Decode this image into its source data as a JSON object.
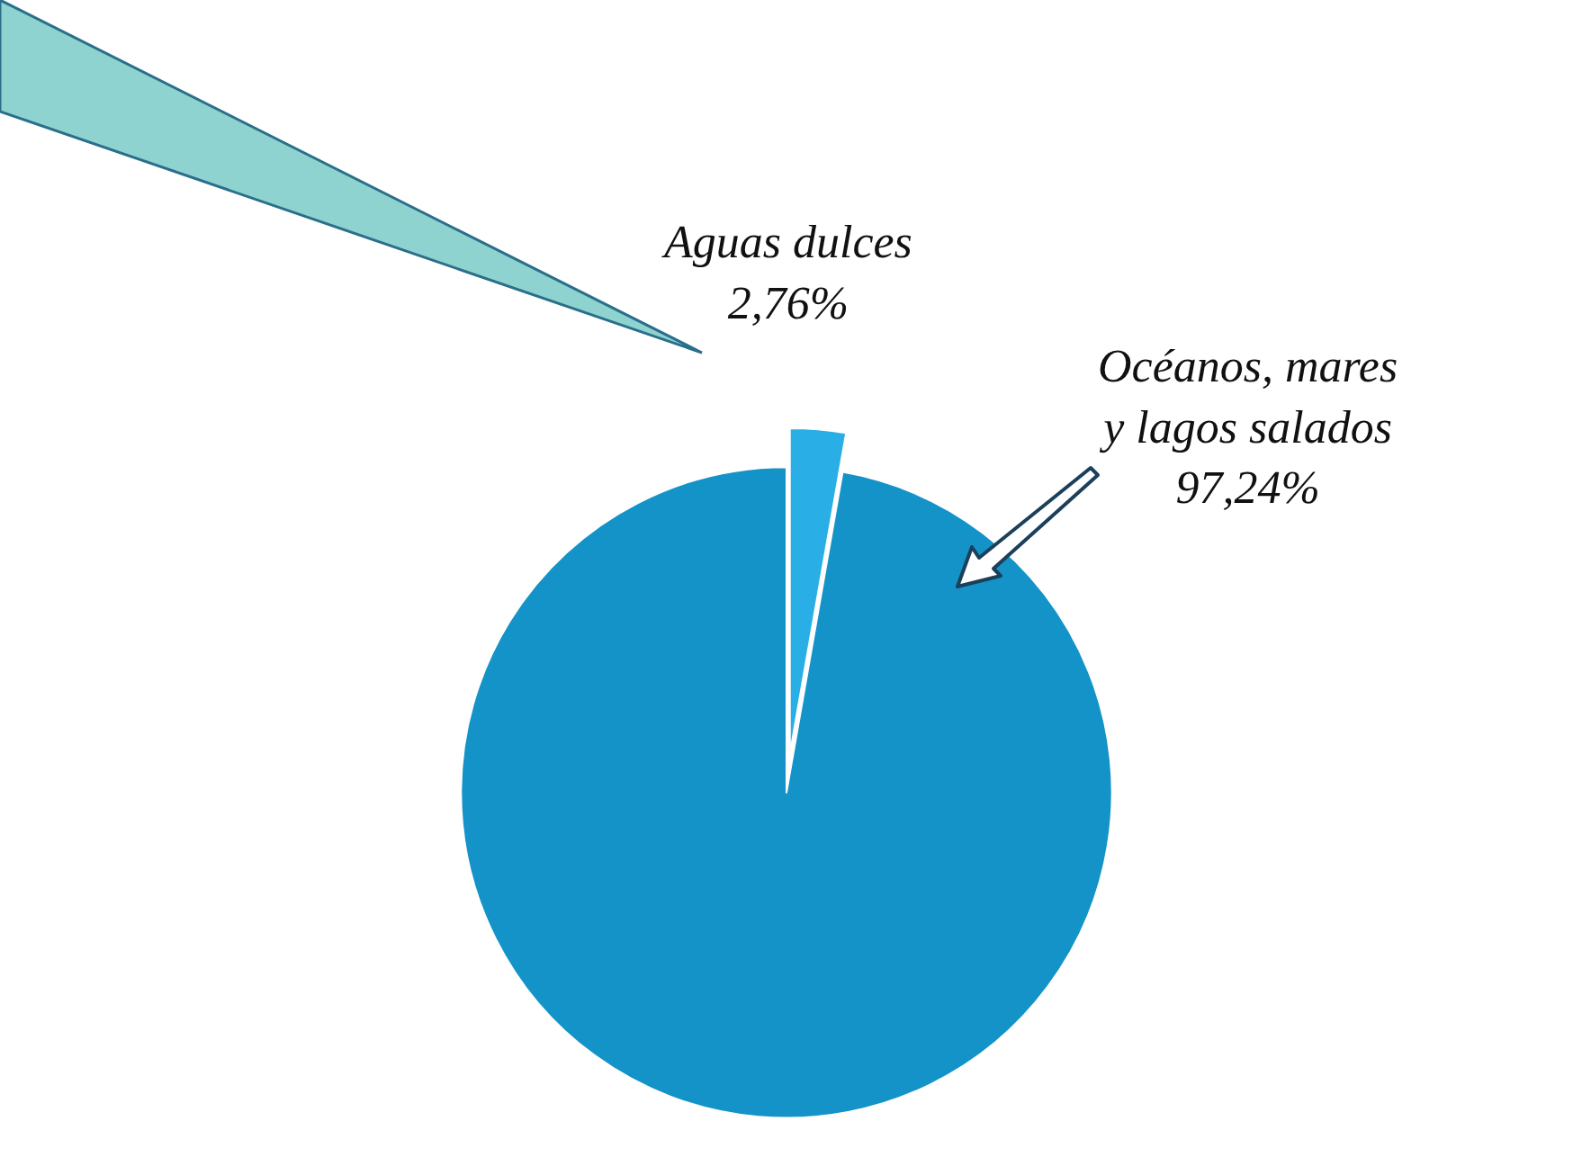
{
  "chart_data": {
    "type": "pie",
    "categories": [
      "Aguas dulces",
      "Océanos, mares y lagos salados"
    ],
    "values": [
      2.76,
      97.24
    ],
    "value_labels": [
      "2,76%",
      "97,24%"
    ],
    "colors": [
      "#2aaee6",
      "#1493c8"
    ],
    "legend": false
  }
}
